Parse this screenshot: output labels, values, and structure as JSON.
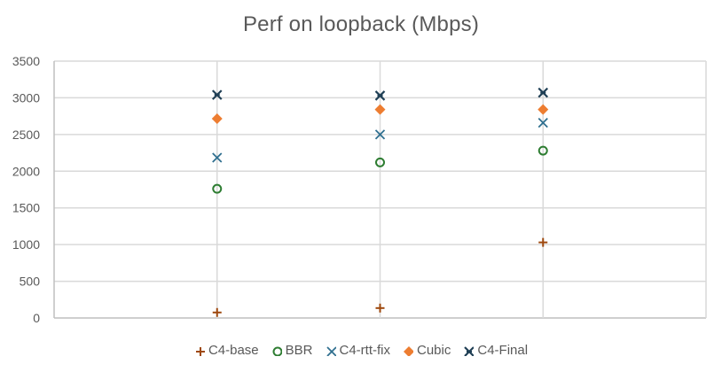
{
  "chart_data": {
    "type": "scatter",
    "title": "Perf on loopback (Mbps)",
    "xlabel": "",
    "ylabel": "",
    "x": [
      1,
      2,
      3
    ],
    "xlim": [
      0,
      4
    ],
    "ylim": [
      0,
      3500
    ],
    "yticks": [
      0,
      500,
      1000,
      1500,
      2000,
      2500,
      3000,
      3500
    ],
    "ytick_labels": [
      "0",
      "500",
      "1000",
      "1500",
      "2000",
      "2500",
      "3000",
      "3500"
    ],
    "grid": {
      "horizontal": true,
      "vertical": true
    },
    "legend_position": "bottom",
    "series": [
      {
        "name": "C4-base",
        "marker": "plus",
        "color": "#9E480E",
        "values": [
          75,
          135,
          1030
        ]
      },
      {
        "name": "BBR",
        "marker": "circle-open",
        "color": "#2E7D32",
        "values": [
          1760,
          2120,
          2280
        ]
      },
      {
        "name": "C4-rtt-fix",
        "marker": "x",
        "color": "#2F6F8F",
        "values": [
          2185,
          2500,
          2660
        ]
      },
      {
        "name": "Cubic",
        "marker": "diamond",
        "color": "#ED7D31",
        "values": [
          2715,
          2840,
          2840
        ]
      },
      {
        "name": "C4-Final",
        "marker": "star-x",
        "color": "#1F3F55",
        "values": [
          3040,
          3030,
          3070
        ]
      }
    ]
  },
  "colors": {
    "gridline": "#D9D9D9",
    "axis": "#BFBFBF",
    "text": "#595959"
  }
}
